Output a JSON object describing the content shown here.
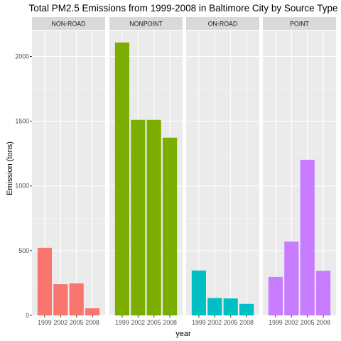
{
  "chart_data": {
    "type": "bar",
    "title": "Total PM2.5 Emissions from 1999-2008 in Baltimore City by Source Type",
    "xlabel": "year",
    "ylabel": "Emission (tons)",
    "ylim": [
      0,
      2200
    ],
    "y_ticks": [
      0,
      500,
      1000,
      1500,
      2000
    ],
    "categories": [
      "1999",
      "2002",
      "2005",
      "2008"
    ],
    "grid": true,
    "legend": "none",
    "facets": [
      {
        "name": "NON-ROAD",
        "color": "#F8766D",
        "values": [
          522,
          241,
          248,
          55
        ]
      },
      {
        "name": "NONPOINT",
        "color": "#7CAE00",
        "values": [
          2108,
          1510,
          1510,
          1373
        ]
      },
      {
        "name": "ON-ROAD",
        "color": "#00BFC4",
        "values": [
          347,
          134,
          131,
          89
        ]
      },
      {
        "name": "POINT",
        "color": "#C77CFF",
        "values": [
          297,
          570,
          1202,
          345
        ]
      }
    ]
  }
}
